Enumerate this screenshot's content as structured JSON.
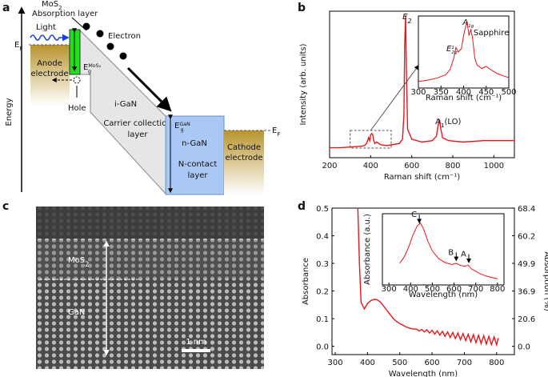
{
  "panel_labels": [
    "a",
    "b",
    "c",
    "d"
  ],
  "band_diagram": {
    "mos2": {
      "base": "MoS",
      "sub": "2"
    },
    "absorption_layer": "Absorption layer",
    "light": "Light",
    "electron": "Electron",
    "anode": [
      "Anode",
      "electrode"
    ],
    "fermi_left": {
      "base": "E",
      "sub": "F"
    },
    "gap_mos2": {
      "base": "E",
      "sub": "g",
      "sup": "MoS₂"
    },
    "hole": "Hole",
    "energy": "Energy",
    "i_gan": "i-GaN",
    "collection": [
      "Carrier collection",
      "layer"
    ],
    "gap_gan": {
      "base": "E",
      "sub": "g",
      "sup": "GaN"
    },
    "n_gan": "n-GaN",
    "n_contact": [
      "N-contact",
      "layer"
    ],
    "cathode": [
      "Cathode",
      "electrode"
    ],
    "fermi_right": {
      "base": "E",
      "sub": "F"
    }
  },
  "tem_image": {
    "mos2": {
      "base": "MoS",
      "sub": "2"
    },
    "gan": "GaN",
    "scale_bar": "1 nm"
  },
  "chart_data": [
    {
      "type": "line",
      "xlabel": "Raman shift (cm⁻¹)",
      "ylabel": "Intensity (arb. units)",
      "x": [
        200,
        250,
        300,
        350,
        370,
        380,
        390,
        395,
        400,
        405,
        410,
        415,
        420,
        430,
        450,
        480,
        500,
        540,
        555,
        562,
        566,
        570,
        574,
        580,
        600,
        650,
        700,
        720,
        728,
        735,
        742,
        750,
        780,
        850,
        950,
        1050,
        1100
      ],
      "series": [
        {
          "color": "#e8151b",
          "values": [
            0.07,
            0.07,
            0.075,
            0.08,
            0.085,
            0.1,
            0.14,
            0.12,
            0.16,
            0.17,
            0.16,
            0.12,
            0.1,
            0.11,
            0.09,
            0.085,
            0.09,
            0.1,
            0.13,
            0.3,
            0.8,
            1.0,
            0.6,
            0.2,
            0.13,
            0.11,
            0.12,
            0.15,
            0.22,
            0.27,
            0.2,
            0.14,
            0.12,
            0.11,
            0.12,
            0.12,
            0.12
          ]
        }
      ],
      "xlim": [
        200,
        1100
      ],
      "ylim": [
        0,
        1.03
      ],
      "xticks": [
        200,
        400,
        600,
        800,
        1000
      ],
      "annotations": [
        {
          "base": "E",
          "sub": "2"
        },
        {
          "base": "A",
          "sub": "1",
          "tail": "(LO)"
        }
      ]
    },
    {
      "type": "line",
      "xlabel": "Raman shift (cm⁻¹)",
      "x": [
        300,
        320,
        340,
        360,
        370,
        378,
        383,
        388,
        395,
        400,
        405,
        408,
        412,
        416,
        420,
        425,
        430,
        440,
        450,
        460,
        475,
        490,
        500
      ],
      "series": [
        {
          "color": "#e8151b",
          "values": [
            0.1,
            0.12,
            0.15,
            0.2,
            0.28,
            0.45,
            0.62,
            0.55,
            0.6,
            0.8,
            0.95,
            1.0,
            0.8,
            0.9,
            0.75,
            0.45,
            0.35,
            0.3,
            0.33,
            0.28,
            0.22,
            0.18,
            0.16
          ]
        }
      ],
      "xlim": [
        300,
        500
      ],
      "ylim": [
        0,
        1.1
      ],
      "xticks": [
        300,
        350,
        400,
        450,
        500
      ],
      "annotations": [
        {
          "base": "E",
          "sup": "1",
          "sub": "2g"
        },
        {
          "base": "A",
          "sub": "1g"
        },
        {
          "base": "Sapphire"
        }
      ]
    },
    {
      "type": "line",
      "xlabel": "Wavelength (nm)",
      "ylabel": "Absorbance",
      "y2label": "Absorption (%)",
      "y2_scale": "absorption_percent",
      "x": [
        370,
        375,
        380,
        390,
        400,
        410,
        420,
        430,
        440,
        450,
        460,
        470,
        480,
        490,
        500,
        510,
        520,
        530,
        540,
        552,
        560,
        568,
        576,
        584,
        592,
        600,
        608,
        616,
        624,
        632,
        640,
        648,
        656,
        664,
        672,
        680,
        688,
        696,
        704,
        712,
        720,
        728,
        736,
        744,
        752,
        760,
        768,
        776,
        784,
        792,
        800,
        805
      ],
      "series": [
        {
          "color": "#e8151b",
          "values": [
            0.5,
            0.3,
            0.16,
            0.135,
            0.155,
            0.165,
            0.17,
            0.168,
            0.16,
            0.145,
            0.13,
            0.115,
            0.1,
            0.09,
            0.082,
            0.076,
            0.07,
            0.066,
            0.063,
            0.062,
            0.055,
            0.061,
            0.052,
            0.06,
            0.048,
            0.058,
            0.044,
            0.056,
            0.04,
            0.054,
            0.036,
            0.052,
            0.032,
            0.05,
            0.028,
            0.048,
            0.024,
            0.046,
            0.02,
            0.044,
            0.016,
            0.042,
            0.013,
            0.04,
            0.01,
            0.038,
            0.008,
            0.036,
            0.006,
            0.034,
            0.005,
            0.03
          ]
        }
      ],
      "xlim": [
        290,
        855
      ],
      "ylim": [
        -0.03,
        0.5
      ],
      "xticks": [
        300,
        400,
        500,
        600,
        700,
        800
      ],
      "yticks": [
        {
          "value": 0,
          "label": "0.0"
        },
        0.1,
        0.2,
        0.3,
        0.4,
        0.5
      ],
      "y2ticks": [
        {
          "value": 0,
          "label": "0.0"
        },
        20.6,
        36.9,
        49.9,
        60.2,
        68.4
      ]
    },
    {
      "type": "line",
      "xlabel": "Wavelength (nm)",
      "ylabel": "Absorbance (a.u.)",
      "x": [
        350,
        370,
        390,
        410,
        430,
        445,
        460,
        480,
        500,
        530,
        560,
        590,
        610,
        625,
        650,
        665,
        680,
        720,
        760,
        800
      ],
      "series": [
        {
          "color": "#e8151b",
          "values": [
            0.35,
            0.45,
            0.6,
            0.8,
            0.95,
            1.0,
            0.9,
            0.7,
            0.55,
            0.42,
            0.36,
            0.33,
            0.35,
            0.32,
            0.3,
            0.32,
            0.26,
            0.18,
            0.13,
            0.1
          ]
        }
      ],
      "xlim": [
        270,
        830
      ],
      "ylim": [
        0,
        1.15
      ],
      "xticks": [
        300,
        400,
        500,
        600,
        700,
        800
      ],
      "annotations": [
        {
          "base": "C"
        },
        {
          "base": "B"
        },
        {
          "base": "A"
        }
      ]
    }
  ]
}
